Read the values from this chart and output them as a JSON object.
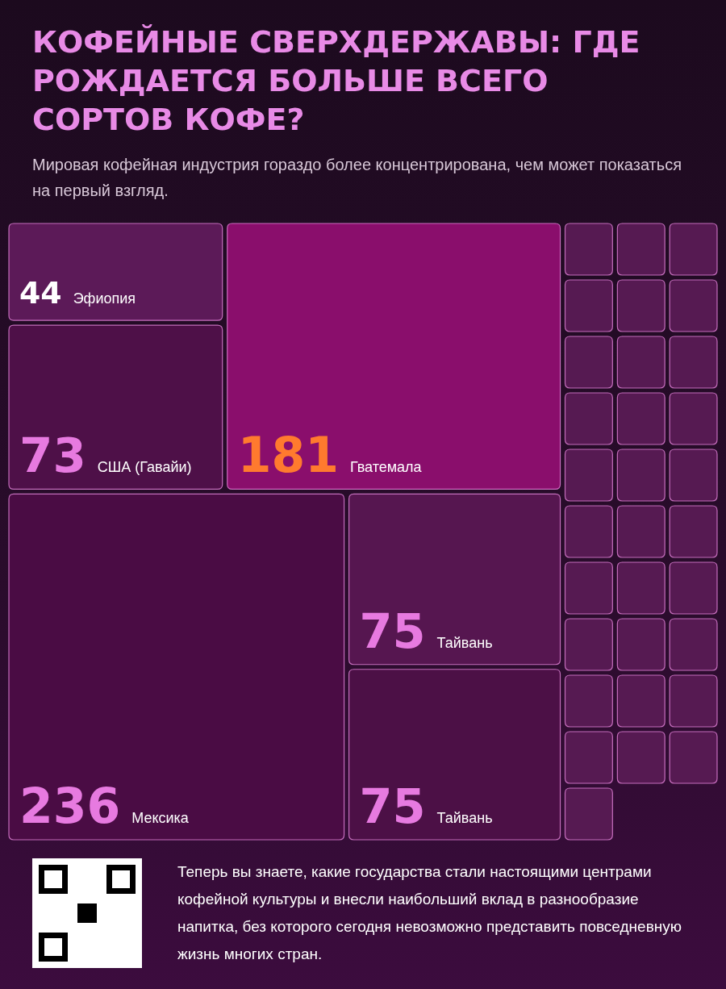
{
  "chart_data": {
    "type": "other",
    "title": "КОФЕЙНЫЕ СВЕРХДЕРЖАВЫ: ГДЕ РОЖДАЕТСЯ БОЛЬШЕ ВСЕГО СОРТОВ КОФЕ?",
    "subtitle": "Мировая кофейная индустрия гораздо более концентрирована, чем может показаться на первый взгляд.",
    "categories": [
      "Эфиопия",
      "США (Гавайи)",
      "Гватемала",
      "Мексика",
      "Тайвань",
      "Тайвань",
      null,
      null,
      null,
      null,
      null,
      null,
      null,
      null,
      null,
      null,
      null,
      null,
      null,
      null,
      null,
      null,
      null,
      null,
      null,
      null,
      null,
      null,
      null,
      null,
      null,
      null,
      null,
      null,
      null,
      null,
      null
    ],
    "values": [
      44,
      73,
      181,
      236,
      75,
      75,
      null,
      null,
      null,
      null,
      null,
      null,
      null,
      null,
      null,
      null,
      null,
      null,
      null,
      null,
      null,
      null,
      null,
      null,
      null,
      null,
      null,
      null,
      null,
      null,
      null,
      null,
      null,
      null,
      null,
      null,
      null
    ],
    "colors": [
      "#5c1a58",
      "#4e1048",
      "#8a0e6c",
      "#4a0c44",
      "#561650",
      "#4c1046",
      "#561a52",
      "#561a52",
      "#561a52",
      "#561a52",
      "#561a52",
      "#561a52",
      "#561a52",
      "#561a52",
      "#561a52",
      "#561a52",
      "#561a52",
      "#561a52",
      "#561a52",
      "#561a52",
      "#561a52",
      "#561a52",
      "#561a52",
      "#561a52",
      "#561a52",
      "#561a52",
      "#561a52",
      "#561a52",
      "#561a52",
      "#561a52",
      "#561a52",
      "#561a52",
      "#561a52",
      "#561a52",
      "#561a52",
      "#561a52",
      "#561a52"
    ],
    "data_labels": true,
    "annotations": [
      "Теперь вы знаете, какие государства стали настоящими центрами кофейной культуры и внесли наибольший вклад в разнообразие напитка, без которого сегодня невозможно представить повседневную жизнь многих стран."
    ]
  }
}
